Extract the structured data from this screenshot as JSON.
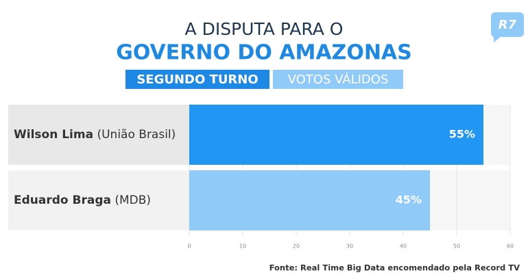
{
  "chart_data": {
    "type": "bar",
    "orientation": "horizontal",
    "title": "A DISPUTA PARA O",
    "subtitle": "GOVERNO DO AMAZONAS",
    "tags": [
      "SEGUNDO TURNO",
      "VOTOS VÁLIDOS"
    ],
    "categories": [
      "Wilson Lima",
      "Eduardo Braga"
    ],
    "parties": [
      "(União Brasil)",
      "(MDB)"
    ],
    "values": [
      55,
      45
    ],
    "value_labels": [
      "55%",
      "45%"
    ],
    "colors": [
      "#2196f3",
      "#90caf9"
    ],
    "xlim": [
      0,
      60
    ],
    "xticks": [
      0,
      10,
      20,
      30,
      40,
      50,
      60
    ],
    "grid": true,
    "source": "Fonte: Real Time Big Data encomendado pela Record TV",
    "logo": "R7"
  }
}
